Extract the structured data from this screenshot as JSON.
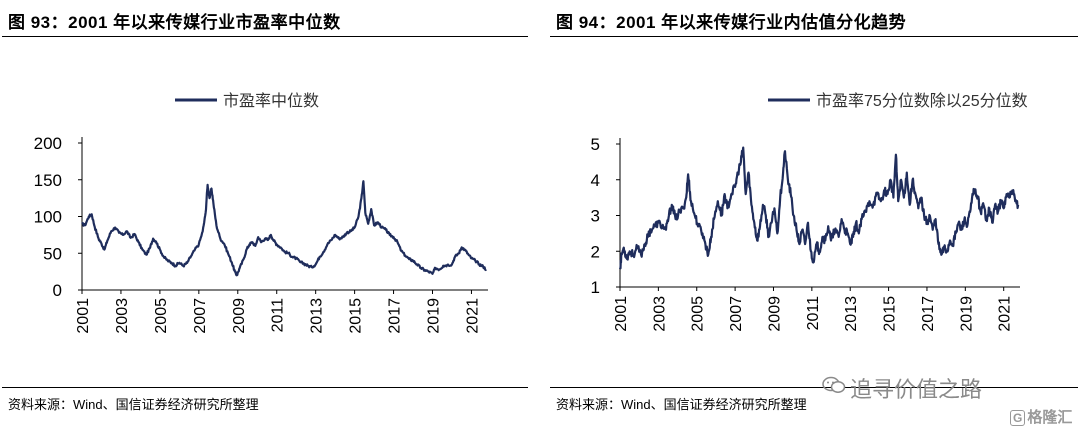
{
  "panels": [
    {
      "title": "图 93：2001 年以来传媒行业市盈率中位数",
      "source": "资料来源：Wind、国信证券经济研究所整理"
    },
    {
      "title": "图 94：2001 年以来传媒行业内估值分化趋势",
      "source": "资料来源：Wind、国信证券经济研究所整理"
    }
  ],
  "watermark": {
    "text": "追寻价值之路",
    "icon": "wechat-icon"
  },
  "logo": {
    "mark": "G",
    "text": "格隆汇"
  },
  "colors": {
    "line": "#1f2d5c"
  },
  "chart_data": [
    {
      "type": "line",
      "title": "",
      "legend": "市盈率中位数",
      "legend_position": "top-center",
      "ylim": [
        0,
        200
      ],
      "yticks": [
        0,
        50,
        100,
        150,
        200
      ],
      "xlim": [
        2001,
        2021.85
      ],
      "xticks": [
        "2001",
        "2003",
        "2005",
        "2007",
        "2009",
        "2011",
        "2013",
        "2015",
        "2017",
        "2019",
        "2021"
      ],
      "series": [
        {
          "name": "市盈率中位数",
          "points": [
            [
              2001.0,
              90
            ],
            [
              2001.15,
              88
            ],
            [
              2001.35,
              100
            ],
            [
              2001.5,
              103
            ],
            [
              2001.65,
              86
            ],
            [
              2001.85,
              70
            ],
            [
              2002.0,
              63
            ],
            [
              2002.15,
              55
            ],
            [
              2002.3,
              67
            ],
            [
              2002.5,
              80
            ],
            [
              2002.7,
              85
            ],
            [
              2002.9,
              78
            ],
            [
              2003.1,
              75
            ],
            [
              2003.3,
              80
            ],
            [
              2003.5,
              71
            ],
            [
              2003.7,
              76
            ],
            [
              2003.9,
              65
            ],
            [
              2004.1,
              55
            ],
            [
              2004.3,
              48
            ],
            [
              2004.5,
              58
            ],
            [
              2004.65,
              70
            ],
            [
              2004.8,
              66
            ],
            [
              2005.0,
              55
            ],
            [
              2005.2,
              45
            ],
            [
              2005.4,
              40
            ],
            [
              2005.6,
              37
            ],
            [
              2005.8,
              33
            ],
            [
              2006.0,
              37
            ],
            [
              2006.2,
              33
            ],
            [
              2006.4,
              37
            ],
            [
              2006.6,
              46
            ],
            [
              2006.8,
              55
            ],
            [
              2007.0,
              62
            ],
            [
              2007.2,
              80
            ],
            [
              2007.35,
              105
            ],
            [
              2007.45,
              143
            ],
            [
              2007.55,
              125
            ],
            [
              2007.65,
              138
            ],
            [
              2007.75,
              118
            ],
            [
              2007.9,
              88
            ],
            [
              2008.1,
              70
            ],
            [
              2008.3,
              63
            ],
            [
              2008.5,
              50
            ],
            [
              2008.7,
              37
            ],
            [
              2008.85,
              25
            ],
            [
              2008.95,
              20
            ],
            [
              2009.1,
              30
            ],
            [
              2009.3,
              42
            ],
            [
              2009.45,
              55
            ],
            [
              2009.6,
              62
            ],
            [
              2009.75,
              65
            ],
            [
              2009.9,
              60
            ],
            [
              2010.05,
              72
            ],
            [
              2010.2,
              65
            ],
            [
              2010.4,
              70
            ],
            [
              2010.55,
              68
            ],
            [
              2010.7,
              75
            ],
            [
              2010.85,
              67
            ],
            [
              2011.0,
              62
            ],
            [
              2011.2,
              58
            ],
            [
              2011.4,
              52
            ],
            [
              2011.6,
              50
            ],
            [
              2011.8,
              45
            ],
            [
              2012.0,
              43
            ],
            [
              2012.2,
              38
            ],
            [
              2012.4,
              36
            ],
            [
              2012.6,
              33
            ],
            [
              2012.8,
              31
            ],
            [
              2013.0,
              35
            ],
            [
              2013.2,
              45
            ],
            [
              2013.4,
              52
            ],
            [
              2013.6,
              62
            ],
            [
              2013.8,
              68
            ],
            [
              2014.0,
              75
            ],
            [
              2014.2,
              70
            ],
            [
              2014.4,
              72
            ],
            [
              2014.6,
              78
            ],
            [
              2014.8,
              80
            ],
            [
              2015.0,
              85
            ],
            [
              2015.2,
              100
            ],
            [
              2015.35,
              125
            ],
            [
              2015.45,
              148
            ],
            [
              2015.55,
              105
            ],
            [
              2015.7,
              90
            ],
            [
              2015.85,
              110
            ],
            [
              2016.0,
              88
            ],
            [
              2016.2,
              92
            ],
            [
              2016.4,
              85
            ],
            [
              2016.6,
              82
            ],
            [
              2016.8,
              75
            ],
            [
              2017.0,
              72
            ],
            [
              2017.2,
              65
            ],
            [
              2017.4,
              53
            ],
            [
              2017.6,
              47
            ],
            [
              2017.8,
              42
            ],
            [
              2018.0,
              40
            ],
            [
              2018.2,
              35
            ],
            [
              2018.4,
              30
            ],
            [
              2018.6,
              27
            ],
            [
              2018.8,
              25
            ],
            [
              2019.0,
              22
            ],
            [
              2019.15,
              30
            ],
            [
              2019.35,
              28
            ],
            [
              2019.55,
              33
            ],
            [
              2019.75,
              34
            ],
            [
              2020.0,
              35
            ],
            [
              2020.15,
              45
            ],
            [
              2020.35,
              50
            ],
            [
              2020.5,
              58
            ],
            [
              2020.65,
              55
            ],
            [
              2020.85,
              48
            ],
            [
              2021.0,
              43
            ],
            [
              2021.2,
              40
            ],
            [
              2021.4,
              35
            ],
            [
              2021.6,
              32
            ],
            [
              2021.75,
              28
            ]
          ]
        }
      ]
    },
    {
      "type": "line",
      "title": "",
      "legend": "市盈率75分位数除以25分位数",
      "legend_position": "top-center",
      "ylim": [
        1,
        5
      ],
      "yticks": [
        1,
        2,
        3,
        4,
        5
      ],
      "xlim": [
        2001,
        2021.85
      ],
      "xticks": [
        "2001",
        "2003",
        "2005",
        "2007",
        "2009",
        "2011",
        "2013",
        "2015",
        "2017",
        "2019",
        "2021"
      ],
      "series": [
        {
          "name": "市盈率75分位数除以25分位数",
          "points": [
            [
              2001.0,
              1.5
            ],
            [
              2001.08,
              1.9
            ],
            [
              2001.2,
              2.1
            ],
            [
              2001.35,
              1.8
            ],
            [
              2001.5,
              2.0
            ],
            [
              2001.7,
              1.9
            ],
            [
              2001.9,
              2.1
            ],
            [
              2002.1,
              1.9
            ],
            [
              2002.3,
              2.2
            ],
            [
              2002.45,
              2.4
            ],
            [
              2002.6,
              2.6
            ],
            [
              2002.8,
              2.7
            ],
            [
              2003.0,
              2.8
            ],
            [
              2003.2,
              2.7
            ],
            [
              2003.4,
              2.6
            ],
            [
              2003.55,
              3.0
            ],
            [
              2003.7,
              3.3
            ],
            [
              2003.9,
              2.9
            ],
            [
              2004.1,
              3.1
            ],
            [
              2004.3,
              3.2
            ],
            [
              2004.45,
              3.5
            ],
            [
              2004.55,
              4.15
            ],
            [
              2004.7,
              3.4
            ],
            [
              2004.9,
              3.0
            ],
            [
              2005.1,
              2.7
            ],
            [
              2005.3,
              2.5
            ],
            [
              2005.45,
              2.2
            ],
            [
              2005.6,
              1.9
            ],
            [
              2005.75,
              2.4
            ],
            [
              2005.9,
              2.9
            ],
            [
              2006.1,
              3.4
            ],
            [
              2006.3,
              3.0
            ],
            [
              2006.45,
              3.6
            ],
            [
              2006.6,
              3.2
            ],
            [
              2006.8,
              3.6
            ],
            [
              2007.0,
              3.8
            ],
            [
              2007.15,
              4.2
            ],
            [
              2007.3,
              4.5
            ],
            [
              2007.42,
              4.9
            ],
            [
              2007.55,
              3.6
            ],
            [
              2007.7,
              4.2
            ],
            [
              2007.85,
              3.3
            ],
            [
              2008.0,
              2.8
            ],
            [
              2008.15,
              2.3
            ],
            [
              2008.3,
              2.7
            ],
            [
              2008.45,
              3.3
            ],
            [
              2008.6,
              3.0
            ],
            [
              2008.75,
              2.4
            ],
            [
              2008.9,
              2.8
            ],
            [
              2009.05,
              3.2
            ],
            [
              2009.2,
              2.5
            ],
            [
              2009.35,
              3.5
            ],
            [
              2009.5,
              4.2
            ],
            [
              2009.6,
              4.8
            ],
            [
              2009.75,
              4.0
            ],
            [
              2009.9,
              3.6
            ],
            [
              2010.05,
              3.0
            ],
            [
              2010.2,
              2.6
            ],
            [
              2010.35,
              2.2
            ],
            [
              2010.5,
              2.6
            ],
            [
              2010.65,
              2.2
            ],
            [
              2010.8,
              2.8
            ],
            [
              2010.95,
              2.0
            ],
            [
              2011.1,
              1.7
            ],
            [
              2011.25,
              2.2
            ],
            [
              2011.4,
              2.0
            ],
            [
              2011.55,
              2.4
            ],
            [
              2011.7,
              2.3
            ],
            [
              2011.85,
              2.7
            ],
            [
              2012.0,
              2.3
            ],
            [
              2012.2,
              2.6
            ],
            [
              2012.4,
              2.4
            ],
            [
              2012.55,
              2.9
            ],
            [
              2012.7,
              2.6
            ],
            [
              2012.85,
              2.5
            ],
            [
              2013.0,
              2.2
            ],
            [
              2013.15,
              2.4
            ],
            [
              2013.3,
              2.8
            ],
            [
              2013.45,
              2.5
            ],
            [
              2013.6,
              2.9
            ],
            [
              2013.8,
              3.1
            ],
            [
              2014.0,
              3.4
            ],
            [
              2014.2,
              3.3
            ],
            [
              2014.4,
              3.6
            ],
            [
              2014.6,
              3.4
            ],
            [
              2014.8,
              3.7
            ],
            [
              2014.95,
              3.6
            ],
            [
              2015.1,
              4.0
            ],
            [
              2015.25,
              3.5
            ],
            [
              2015.38,
              4.7
            ],
            [
              2015.5,
              3.4
            ],
            [
              2015.65,
              4.0
            ],
            [
              2015.8,
              3.5
            ],
            [
              2015.95,
              4.2
            ],
            [
              2016.1,
              3.3
            ],
            [
              2016.25,
              4.0
            ],
            [
              2016.4,
              3.6
            ],
            [
              2016.55,
              3.2
            ],
            [
              2016.7,
              3.5
            ],
            [
              2016.85,
              3.0
            ],
            [
              2017.0,
              2.8
            ],
            [
              2017.15,
              3.0
            ],
            [
              2017.3,
              2.6
            ],
            [
              2017.45,
              2.9
            ],
            [
              2017.6,
              2.2
            ],
            [
              2017.75,
              1.9
            ],
            [
              2017.9,
              2.1
            ],
            [
              2018.05,
              2.0
            ],
            [
              2018.2,
              2.3
            ],
            [
              2018.35,
              2.2
            ],
            [
              2018.5,
              2.5
            ],
            [
              2018.65,
              2.8
            ],
            [
              2018.8,
              2.6
            ],
            [
              2018.95,
              2.9
            ],
            [
              2019.1,
              2.7
            ],
            [
              2019.25,
              3.1
            ],
            [
              2019.4,
              3.6
            ],
            [
              2019.5,
              3.7
            ],
            [
              2019.65,
              3.5
            ],
            [
              2019.8,
              3.1
            ],
            [
              2019.95,
              3.3
            ],
            [
              2020.1,
              2.9
            ],
            [
              2020.25,
              3.2
            ],
            [
              2020.4,
              2.8
            ],
            [
              2020.55,
              3.3
            ],
            [
              2020.7,
              3.1
            ],
            [
              2020.85,
              3.4
            ],
            [
              2021.0,
              3.2
            ],
            [
              2021.15,
              3.6
            ],
            [
              2021.3,
              3.5
            ],
            [
              2021.45,
              3.7
            ],
            [
              2021.6,
              3.4
            ],
            [
              2021.75,
              3.3
            ]
          ]
        }
      ]
    }
  ]
}
